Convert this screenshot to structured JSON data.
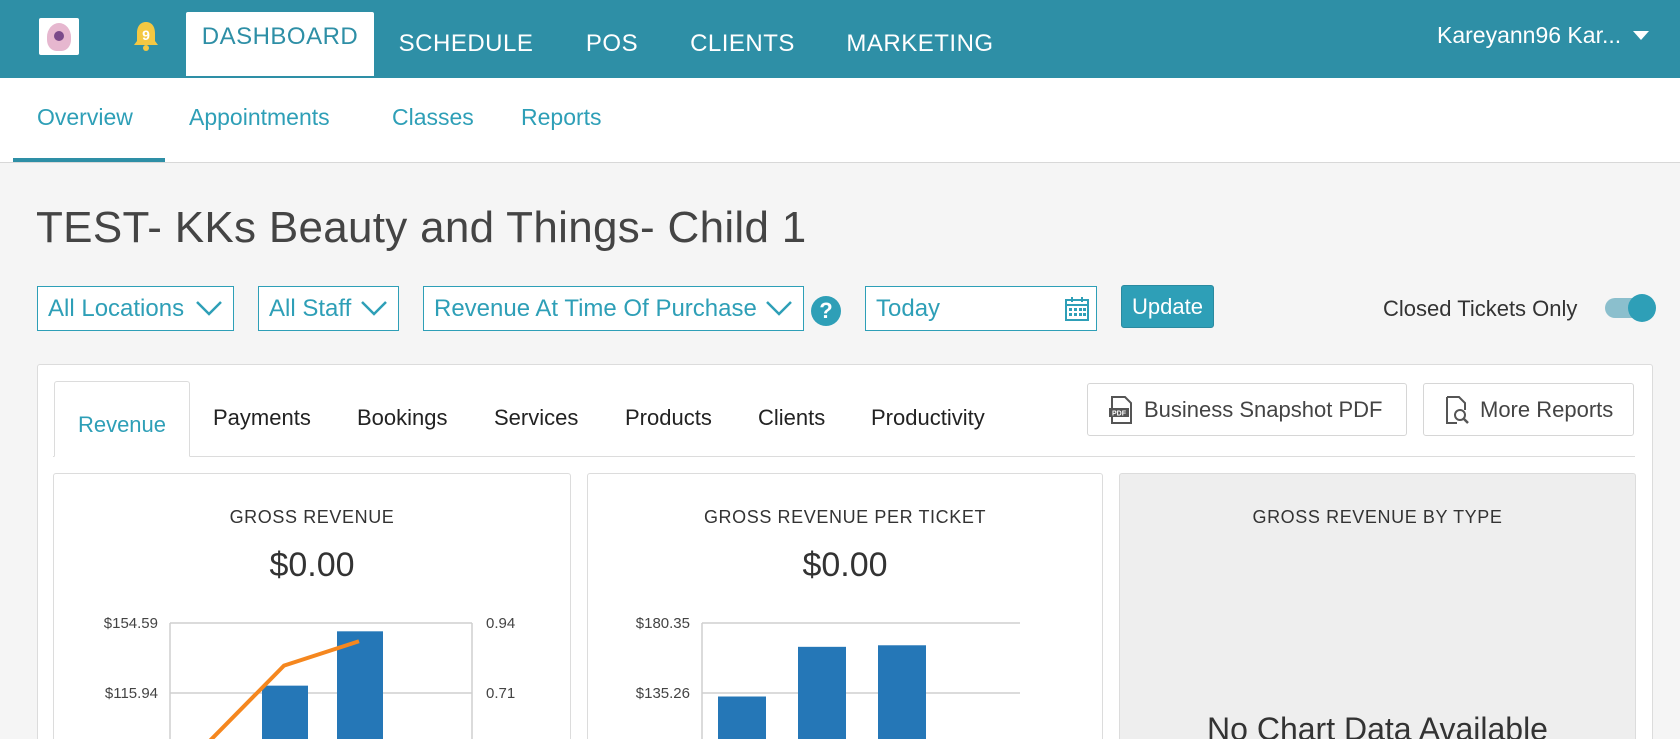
{
  "topnav": {
    "notification_count": "9",
    "tabs": [
      {
        "label": "DASHBOARD",
        "active": true
      },
      {
        "label": "SCHEDULE"
      },
      {
        "label": "POS"
      },
      {
        "label": "CLIENTS"
      },
      {
        "label": "MARKETING"
      }
    ],
    "user_name": "Kareyann96 Kar..."
  },
  "subnav": {
    "tabs": [
      "Overview",
      "Appointments",
      "Classes",
      "Reports"
    ],
    "active": "Overview"
  },
  "page": {
    "title": "TEST- KKs Beauty and Things- Child 1"
  },
  "filters": {
    "locations": "All Locations",
    "staff": "All Staff",
    "revenue_mode": "Revenue At Time Of Purchase",
    "help": "?",
    "date": "Today",
    "update_label": "Update",
    "closed_tickets_label": "Closed Tickets Only",
    "closed_tickets_on": true
  },
  "report_tabs": [
    "Revenue",
    "Payments",
    "Bookings",
    "Services",
    "Products",
    "Clients",
    "Productivity"
  ],
  "report_buttons": {
    "snapshot_pdf": "Business Snapshot PDF",
    "more_reports": "More Reports",
    "pdf_icon_text": "PDF"
  },
  "cards": {
    "gross_revenue": {
      "title": "GROSS REVENUE",
      "value": "$0.00"
    },
    "per_ticket": {
      "title": "GROSS REVENUE PER TICKET",
      "value": "$0.00"
    },
    "by_type": {
      "title": "GROSS REVENUE BY TYPE",
      "empty_message": "No Chart Data Available"
    }
  },
  "colors": {
    "brand": "#2e8fa6",
    "accent": "#2e9fb7",
    "bar": "#2577b7",
    "line": "#f5871f"
  },
  "chart_data": [
    {
      "type": "bar",
      "title": "GROSS REVENUE",
      "y_ticks": [
        "$154.59",
        "$115.94"
      ],
      "y_tick_values": [
        154.59,
        115.94
      ],
      "y2_ticks": [
        "0.94",
        "0.71"
      ],
      "y2_tick_values": [
        0.94,
        0.71
      ],
      "series": [
        {
          "values": [
            120,
            150
          ]
        },
        {
          "type": "line",
          "values": [
            0.55,
            0.8,
            0.88
          ]
        }
      ]
    },
    {
      "type": "bar",
      "title": "GROSS REVENUE PER TICKET",
      "y_ticks": [
        "$180.35",
        "$135.26"
      ],
      "y_tick_values": [
        180.35,
        135.26
      ],
      "series": [
        {
          "values": [
            133,
            165,
            166
          ]
        }
      ]
    }
  ]
}
